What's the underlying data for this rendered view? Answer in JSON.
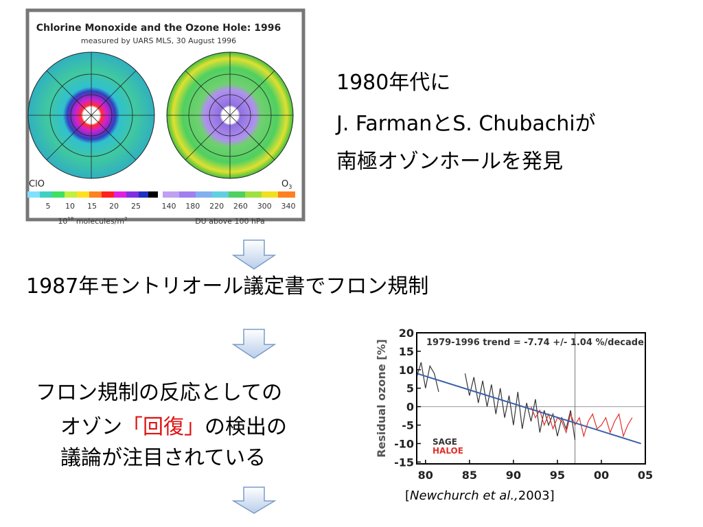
{
  "figure": {
    "title": "Chlorine Monoxide and the Ozone Hole: 1996",
    "subtitle": "measured by UARS MLS, 30 August 1996",
    "left_label": "ClO",
    "right_label_base": "O",
    "right_label_sub": "3",
    "left_ticks": [
      5,
      10,
      15,
      20,
      25
    ],
    "right_ticks": [
      140,
      180,
      220,
      260,
      300,
      340
    ],
    "left_unit": {
      "base": "10",
      "exp": "18",
      "text": " molecules/m",
      "text_exp": "2"
    },
    "right_unit": "DU above 100 hPa"
  },
  "text_blocks": {
    "discovery": [
      "1980年代に",
      "J. FarmanとS. Chubachiが",
      "南極オゾンホールを発見"
    ],
    "protocol": "1987年モントリオール議定書でフロン規制",
    "recovery": {
      "line1": "フロン規制の反応としての",
      "line2_pre": "オゾン",
      "line2_red": "「回復」",
      "line2_post": "の検出の",
      "line3": "議論が注目されている"
    }
  },
  "chart_data": {
    "type": "line",
    "annotation": "1979-1996 trend =  -7.74 +/-  1.04 %/decade",
    "y_label": "Residual ozone [%]",
    "xlim": [
      79,
      105
    ],
    "ylim": [
      -15.5,
      20
    ],
    "xticks": [
      80,
      85,
      90,
      95,
      {
        "value": 100,
        "label": "00"
      },
      {
        "value": 105,
        "label": "05"
      }
    ],
    "yticks": [
      20,
      15,
      10,
      5,
      0,
      -5,
      -10,
      -15
    ],
    "vline_x": 97,
    "series": [
      {
        "name": "SAGE",
        "color": "#333333",
        "x": [
          79,
          79.5,
          80,
          80.5,
          81,
          81.5,
          82,
          84.5,
          85,
          85.5,
          86,
          86.5,
          87,
          87.5,
          88,
          88.5,
          89,
          89.5,
          90,
          90.5,
          91,
          91.5,
          92,
          92.5,
          93,
          93.5,
          94,
          94.5,
          95,
          95.5,
          96,
          96.5,
          97
        ],
        "values": [
          8,
          12,
          5,
          11,
          9,
          4,
          null,
          9,
          3,
          8,
          1,
          7,
          0,
          6,
          -2,
          5,
          -3,
          3,
          -5,
          4,
          -6,
          1,
          -4,
          2,
          -7,
          -1,
          -5,
          -2,
          -8,
          -3,
          -6,
          -1,
          -9
        ]
      },
      {
        "name": "HALOE",
        "color": "#e0302a",
        "x": [
          92,
          92.5,
          93,
          93.5,
          94,
          94.5,
          95,
          95.5,
          96,
          96.5,
          97,
          97.5,
          98,
          98.5,
          99,
          99.5,
          100,
          100.5,
          101,
          101.5,
          102,
          102.5,
          103,
          103.5
        ],
        "values": [
          0,
          -3,
          -1,
          -5,
          -2,
          -6,
          -3,
          -4,
          -7,
          -2,
          -5,
          -3,
          -8,
          -4,
          -2,
          -6,
          -5,
          -3,
          -7,
          -4,
          -2,
          -8,
          -5,
          -3
        ]
      }
    ],
    "trend": {
      "x": [
        79,
        104.5
      ],
      "values": [
        9,
        -10
      ],
      "color": "#3a5fa8"
    }
  },
  "citation": {
    "open": "[",
    "authors": "Newchurch et al.,",
    "year": "2003",
    "close": "]"
  }
}
